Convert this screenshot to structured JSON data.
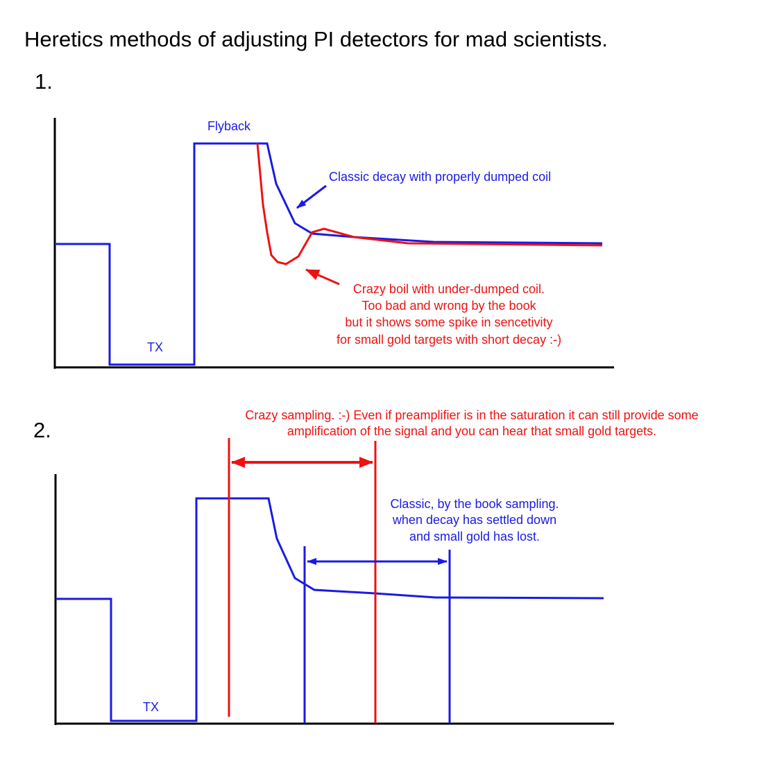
{
  "title": "Heretics methods of adjusting PI detectors for mad scientists.",
  "colors": {
    "blue": "#1a1ae6",
    "red": "#ee1111",
    "black": "#000000"
  },
  "section1": {
    "number": "1.",
    "flyback_label": "Flyback",
    "tx_label": "TX",
    "classic_label": "Classic decay with properly dumped coil",
    "crazy_lines": [
      "Crazy boil with under-dumped coil.",
      "Too bad and wrong by the book",
      "but it shows some spike in sencetivity",
      "for small gold targets with short decay :-)"
    ]
  },
  "section2": {
    "number": "2.",
    "tx_label": "TX",
    "crazy_lines": [
      "Crazy sampling. :-) Even if preamplifier is in the saturation it can still provide some",
      "amplification of the signal and you can hear that small gold targets."
    ],
    "classic_lines": [
      "Classic, by the book sampling.",
      "when decay has settled down",
      "and small gold has lost."
    ]
  }
}
